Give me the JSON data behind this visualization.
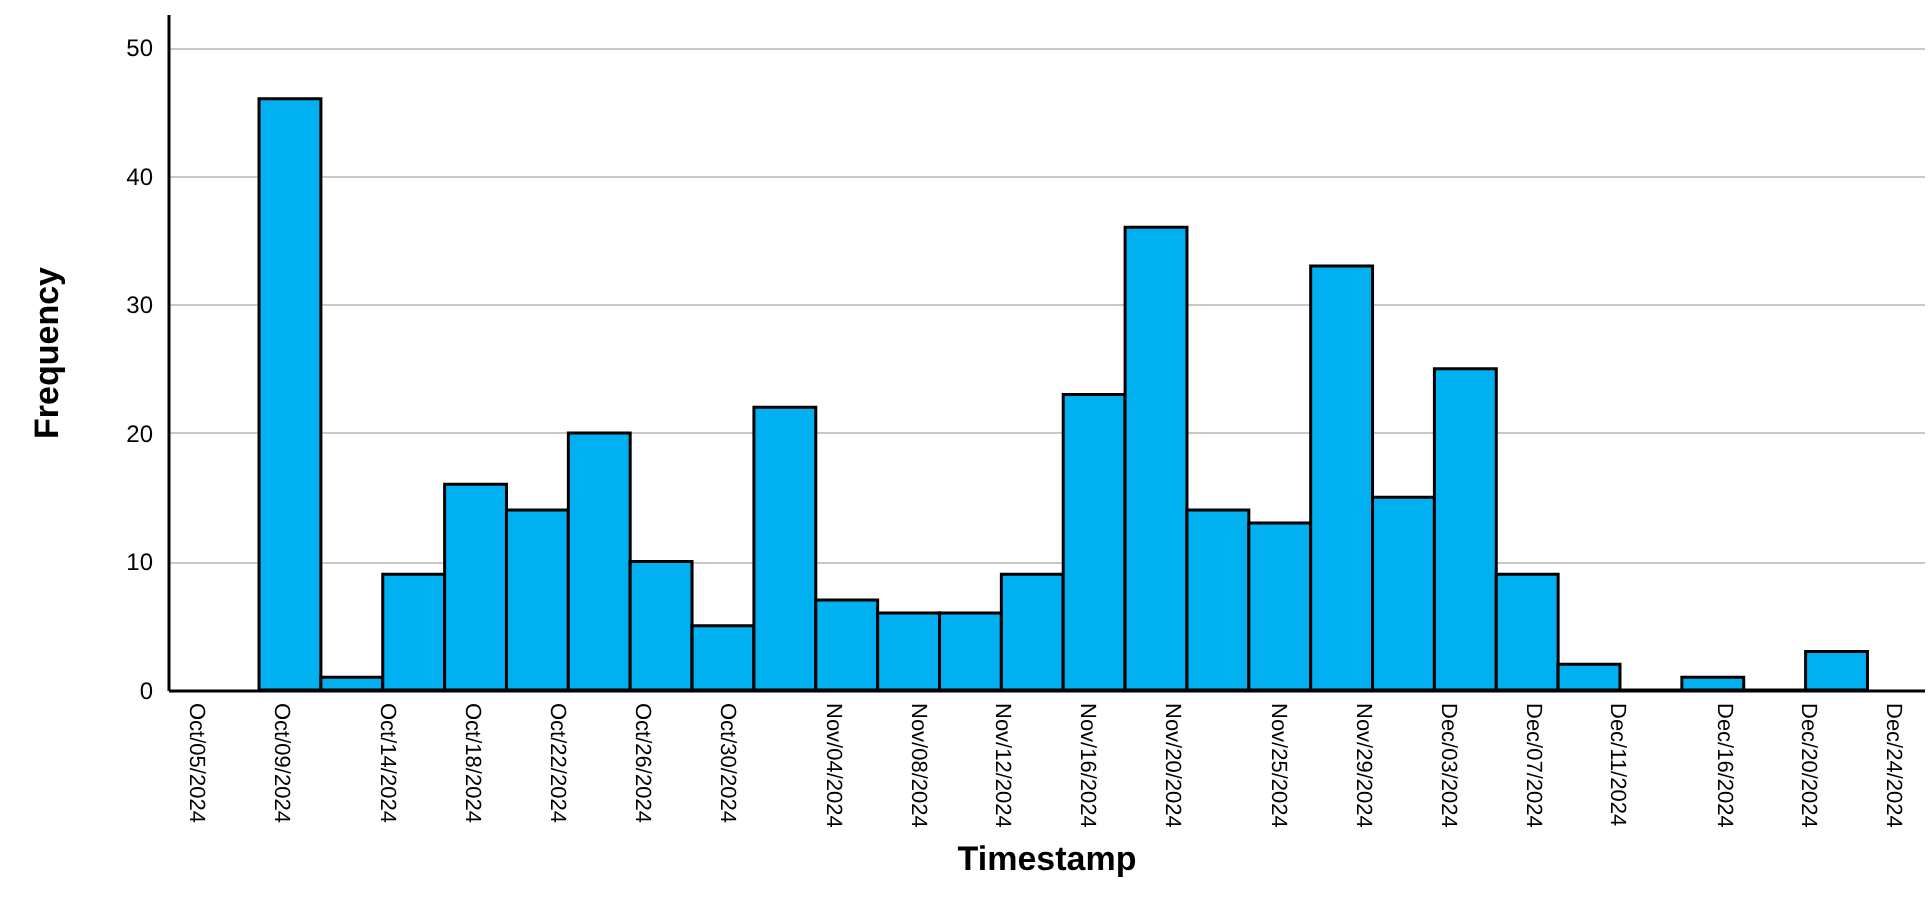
{
  "chart_data": {
    "type": "histogram",
    "xlabel": "Timestamp",
    "ylabel": "Frequency",
    "color": "#00b0f0",
    "bins": [
      "2024-10-08T00:00",
      "2024-10-10T22:00",
      "2024-10-13T20:00",
      "2024-10-16T18:00",
      "2024-10-19T16:00",
      "2024-10-22T14:00",
      "2024-10-25T12:00",
      "2024-10-28T10:00",
      "2024-10-31T08:00",
      "2024-11-03T06:00",
      "2024-11-06T04:00",
      "2024-11-09T02:00",
      "2024-11-12T00:00",
      "2024-11-14T22:00",
      "2024-11-17T20:00",
      "2024-11-20T18:00",
      "2024-11-23T16:00",
      "2024-11-26T14:00",
      "2024-11-29T12:00",
      "2024-12-02T10:00",
      "2024-12-05T08:00",
      "2024-12-08T06:00",
      "2024-12-11T04:00",
      "2024-12-14T02:00",
      "2024-12-17T00:00",
      "2024-12-19T22:00",
      "2024-12-22T20:00"
    ],
    "values": [
      46,
      1,
      9,
      16,
      14,
      20,
      10,
      5,
      22,
      7,
      6,
      6,
      9,
      23,
      36,
      14,
      13,
      33,
      15,
      25,
      9,
      2,
      0,
      1,
      0,
      3
    ],
    "xlim": [
      "2024-10-03T17:00",
      "2024-12-25T12:00"
    ],
    "xticks": [
      {
        "value": "2024-10-05",
        "label": "Oct/05/2024"
      },
      {
        "value": "2024-10-09",
        "label": "Oct/09/2024"
      },
      {
        "value": "2024-10-14",
        "label": "Oct/14/2024"
      },
      {
        "value": "2024-10-18",
        "label": "Oct/18/2024"
      },
      {
        "value": "2024-10-22",
        "label": "Oct/22/2024"
      },
      {
        "value": "2024-10-26",
        "label": "Oct/26/2024"
      },
      {
        "value": "2024-10-30",
        "label": "Oct/30/2024"
      },
      {
        "value": "2024-11-04",
        "label": "Nov/04/2024"
      },
      {
        "value": "2024-11-08",
        "label": "Nov/08/2024"
      },
      {
        "value": "2024-11-12",
        "label": "Nov/12/2024"
      },
      {
        "value": "2024-11-16",
        "label": "Nov/16/2024"
      },
      {
        "value": "2024-11-20",
        "label": "Nov/20/2024"
      },
      {
        "value": "2024-11-25",
        "label": "Nov/25/2024"
      },
      {
        "value": "2024-11-29",
        "label": "Nov/29/2024"
      },
      {
        "value": "2024-12-03",
        "label": "Dec/03/2024"
      },
      {
        "value": "2024-12-07",
        "label": "Dec/07/2024"
      },
      {
        "value": "2024-12-11",
        "label": "Dec/11/2024"
      },
      {
        "value": "2024-12-16",
        "label": "Dec/16/2024"
      },
      {
        "value": "2024-12-20",
        "label": "Dec/20/2024"
      },
      {
        "value": "2024-12-24",
        "label": "Dec/24/2024"
      }
    ],
    "ylim": [
      0,
      52.6
    ],
    "yticks": [
      0,
      10,
      20,
      30,
      40,
      50
    ],
    "grid": "y"
  }
}
